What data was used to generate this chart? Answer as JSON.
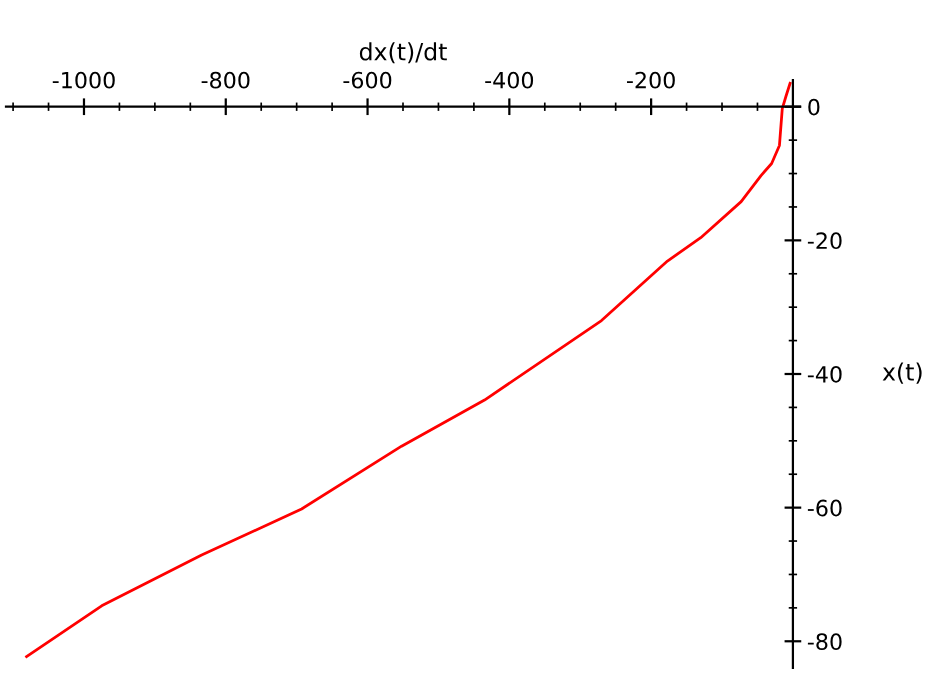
{
  "chart_data": {
    "type": "line",
    "xlabel": "dx(t)/dt",
    "ylabel": "x(t)",
    "series": [
      {
        "color": "#ff0000",
        "x": [
          -4,
          -10,
          -15,
          -19,
          -30,
          -45,
          -73,
          -130,
          -177,
          -270,
          -435,
          -552,
          -693,
          -834,
          -975,
          -1081
        ],
        "values": [
          3.5,
          1.5,
          -0.3,
          -5.8,
          -8.5,
          -10.3,
          -14.2,
          -19.6,
          -23.1,
          -32,
          -43.9,
          -50.8,
          -60.2,
          -67.1,
          -74.7,
          -82.3
        ]
      }
    ],
    "xlim": [
      -1110,
      10
    ],
    "ylim": [
      -84,
      4
    ],
    "xticks": [
      -1000,
      -800,
      -600,
      -400,
      -200
    ],
    "yticks": [
      0,
      -20,
      -40,
      -60,
      -80
    ],
    "grid": false,
    "legend": false,
    "marker": "none",
    "line_style": "solid"
  }
}
